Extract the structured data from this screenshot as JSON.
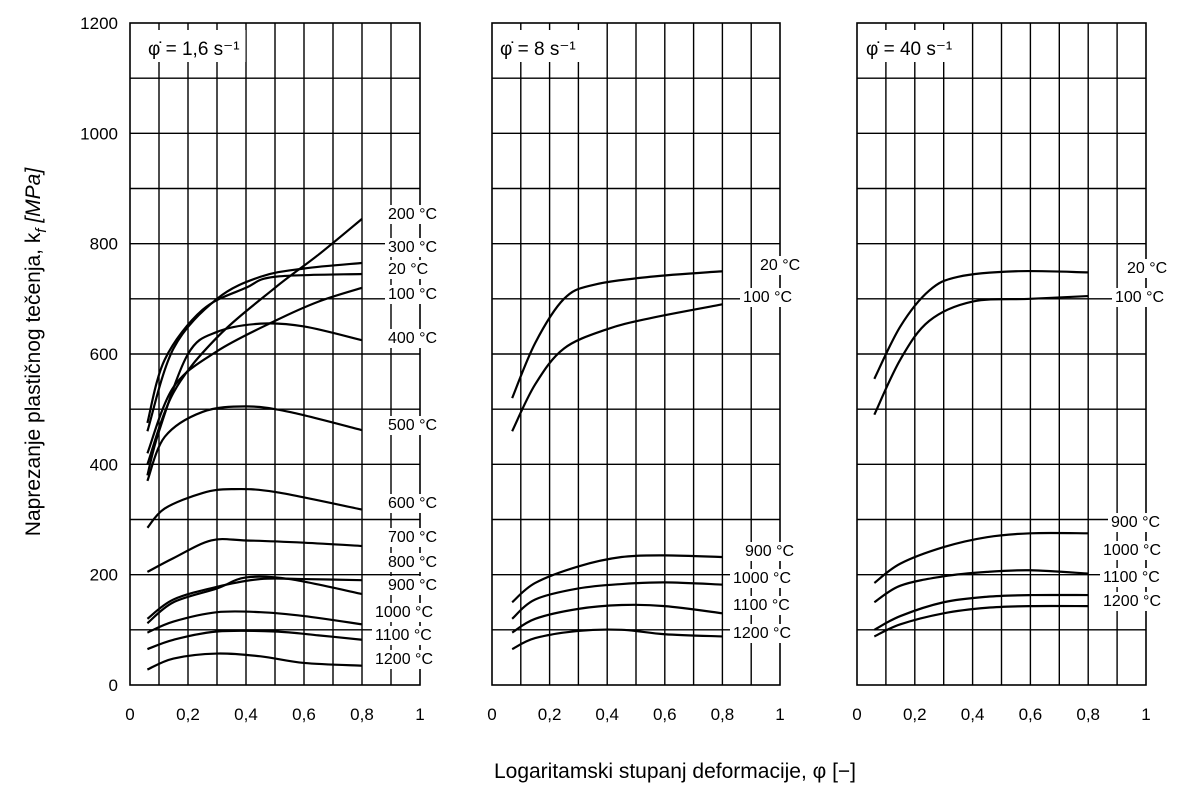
{
  "chart_data": {
    "type": "line",
    "ylabel": "Naprezanje plastičnog tečenja, k",
    "ylabel_sub": "f",
    "ylabel_unit": "[MPa]",
    "xlabel": "Logaritamski stupanj deformacije, φ [−]",
    "y_ticks": [
      "0",
      "200",
      "400",
      "600",
      "800",
      "1000",
      "1200"
    ],
    "x_ticks": [
      "0",
      "0,2",
      "0,4",
      "0,6",
      "0,8",
      "1"
    ],
    "xlim": [
      0,
      1
    ],
    "ylim": [
      0,
      1200
    ],
    "grid": true,
    "panels": [
      {
        "title": "φ̇ = 1,6 s⁻¹",
        "series": [
          {
            "name": "200 °C",
            "points": [
              [
                0.06,
                400
              ],
              [
                0.15,
                530
              ],
              [
                0.3,
                630
              ],
              [
                0.5,
                720
              ],
              [
                0.65,
                780
              ],
              [
                0.8,
                845
              ]
            ]
          },
          {
            "name": "300 °C",
            "points": [
              [
                0.06,
                460
              ],
              [
                0.15,
                610
              ],
              [
                0.3,
                700
              ],
              [
                0.45,
                740
              ],
              [
                0.6,
                755
              ],
              [
                0.8,
                765
              ]
            ]
          },
          {
            "name": "20 °C",
            "points": [
              [
                0.06,
                475
              ],
              [
                0.12,
                590
              ],
              [
                0.25,
                680
              ],
              [
                0.4,
                720
              ],
              [
                0.5,
                740
              ],
              [
                0.8,
                745
              ]
            ]
          },
          {
            "name": "100 °C",
            "points": [
              [
                0.06,
                420
              ],
              [
                0.15,
                540
              ],
              [
                0.3,
                605
              ],
              [
                0.5,
                660
              ],
              [
                0.65,
                695
              ],
              [
                0.8,
                720
              ]
            ]
          },
          {
            "name": "400 °C",
            "points": [
              [
                0.06,
                380
              ],
              [
                0.1,
                460
              ],
              [
                0.2,
                600
              ],
              [
                0.3,
                640
              ],
              [
                0.45,
                655
              ],
              [
                0.6,
                650
              ],
              [
                0.8,
                625
              ]
            ]
          },
          {
            "name": "500 °C",
            "points": [
              [
                0.06,
                370
              ],
              [
                0.12,
                450
              ],
              [
                0.25,
                495
              ],
              [
                0.4,
                505
              ],
              [
                0.55,
                495
              ],
              [
                0.8,
                462
              ]
            ]
          },
          {
            "name": "600 °C",
            "points": [
              [
                0.06,
                285
              ],
              [
                0.12,
                320
              ],
              [
                0.25,
                348
              ],
              [
                0.35,
                355
              ],
              [
                0.5,
                350
              ],
              [
                0.8,
                318
              ]
            ]
          },
          {
            "name": "700 °C",
            "points": [
              [
                0.06,
                205
              ],
              [
                0.15,
                230
              ],
              [
                0.28,
                262
              ],
              [
                0.4,
                262
              ],
              [
                0.6,
                258
              ],
              [
                0.8,
                252
              ]
            ]
          },
          {
            "name": "800 °C",
            "points": [
              [
                0.06,
                120
              ],
              [
                0.15,
                155
              ],
              [
                0.3,
                178
              ],
              [
                0.45,
                192
              ],
              [
                0.6,
                192
              ],
              [
                0.8,
                190
              ]
            ]
          },
          {
            "name": "900 °C",
            "points": [
              [
                0.06,
                112
              ],
              [
                0.15,
                150
              ],
              [
                0.3,
                175
              ],
              [
                0.4,
                195
              ],
              [
                0.55,
                192
              ],
              [
                0.8,
                165
              ]
            ]
          },
          {
            "name": "1000 °C",
            "points": [
              [
                0.06,
                95
              ],
              [
                0.15,
                115
              ],
              [
                0.3,
                132
              ],
              [
                0.45,
                132
              ],
              [
                0.6,
                125
              ],
              [
                0.8,
                110
              ]
            ]
          },
          {
            "name": "1100 °C",
            "points": [
              [
                0.06,
                65
              ],
              [
                0.15,
                82
              ],
              [
                0.3,
                97
              ],
              [
                0.5,
                97
              ],
              [
                0.65,
                90
              ],
              [
                0.8,
                82
              ]
            ]
          },
          {
            "name": "1200 °C",
            "points": [
              [
                0.06,
                28
              ],
              [
                0.15,
                48
              ],
              [
                0.3,
                57
              ],
              [
                0.45,
                52
              ],
              [
                0.6,
                40
              ],
              [
                0.8,
                35
              ]
            ]
          }
        ]
      },
      {
        "title": "φ̇ = 8 s⁻¹",
        "series": [
          {
            "name": "20 °C",
            "points": [
              [
                0.07,
                520
              ],
              [
                0.15,
                620
              ],
              [
                0.25,
                700
              ],
              [
                0.35,
                725
              ],
              [
                0.55,
                740
              ],
              [
                0.8,
                750
              ]
            ]
          },
          {
            "name": "100 °C",
            "points": [
              [
                0.07,
                460
              ],
              [
                0.15,
                545
              ],
              [
                0.25,
                610
              ],
              [
                0.4,
                645
              ],
              [
                0.55,
                665
              ],
              [
                0.8,
                690
              ]
            ]
          },
          {
            "name": "900 °C",
            "points": [
              [
                0.07,
                150
              ],
              [
                0.15,
                185
              ],
              [
                0.3,
                215
              ],
              [
                0.45,
                232
              ],
              [
                0.6,
                235
              ],
              [
                0.8,
                232
              ]
            ]
          },
          {
            "name": "1000 °C",
            "points": [
              [
                0.07,
                120
              ],
              [
                0.15,
                155
              ],
              [
                0.3,
                175
              ],
              [
                0.45,
                183
              ],
              [
                0.6,
                186
              ],
              [
                0.8,
                182
              ]
            ]
          },
          {
            "name": "1100 °C",
            "points": [
              [
                0.07,
                95
              ],
              [
                0.15,
                120
              ],
              [
                0.3,
                138
              ],
              [
                0.45,
                145
              ],
              [
                0.6,
                143
              ],
              [
                0.8,
                130
              ]
            ]
          },
          {
            "name": "1200 °C",
            "points": [
              [
                0.07,
                65
              ],
              [
                0.15,
                85
              ],
              [
                0.3,
                98
              ],
              [
                0.45,
                100
              ],
              [
                0.6,
                92
              ],
              [
                0.8,
                88
              ]
            ]
          }
        ]
      },
      {
        "title": "φ̇ = 40 s⁻¹",
        "series": [
          {
            "name": "20 °C",
            "points": [
              [
                0.06,
                555
              ],
              [
                0.15,
                650
              ],
              [
                0.25,
                715
              ],
              [
                0.35,
                740
              ],
              [
                0.55,
                750
              ],
              [
                0.8,
                748
              ]
            ]
          },
          {
            "name": "100 °C",
            "points": [
              [
                0.06,
                490
              ],
              [
                0.15,
                590
              ],
              [
                0.25,
                660
              ],
              [
                0.4,
                695
              ],
              [
                0.6,
                700
              ],
              [
                0.8,
                705
              ]
            ]
          },
          {
            "name": "900 °C",
            "points": [
              [
                0.06,
                185
              ],
              [
                0.15,
                220
              ],
              [
                0.3,
                250
              ],
              [
                0.45,
                268
              ],
              [
                0.6,
                275
              ],
              [
                0.8,
                275
              ]
            ]
          },
          {
            "name": "1000 °C",
            "points": [
              [
                0.06,
                150
              ],
              [
                0.15,
                180
              ],
              [
                0.3,
                197
              ],
              [
                0.45,
                205
              ],
              [
                0.6,
                208
              ],
              [
                0.8,
                202
              ]
            ]
          },
          {
            "name": "1100 °C",
            "points": [
              [
                0.06,
                100
              ],
              [
                0.15,
                125
              ],
              [
                0.3,
                150
              ],
              [
                0.45,
                160
              ],
              [
                0.6,
                163
              ],
              [
                0.8,
                163
              ]
            ]
          },
          {
            "name": "1200 °C",
            "points": [
              [
                0.06,
                88
              ],
              [
                0.15,
                110
              ],
              [
                0.3,
                130
              ],
              [
                0.45,
                140
              ],
              [
                0.6,
                143
              ],
              [
                0.8,
                143
              ]
            ]
          }
        ]
      }
    ]
  }
}
